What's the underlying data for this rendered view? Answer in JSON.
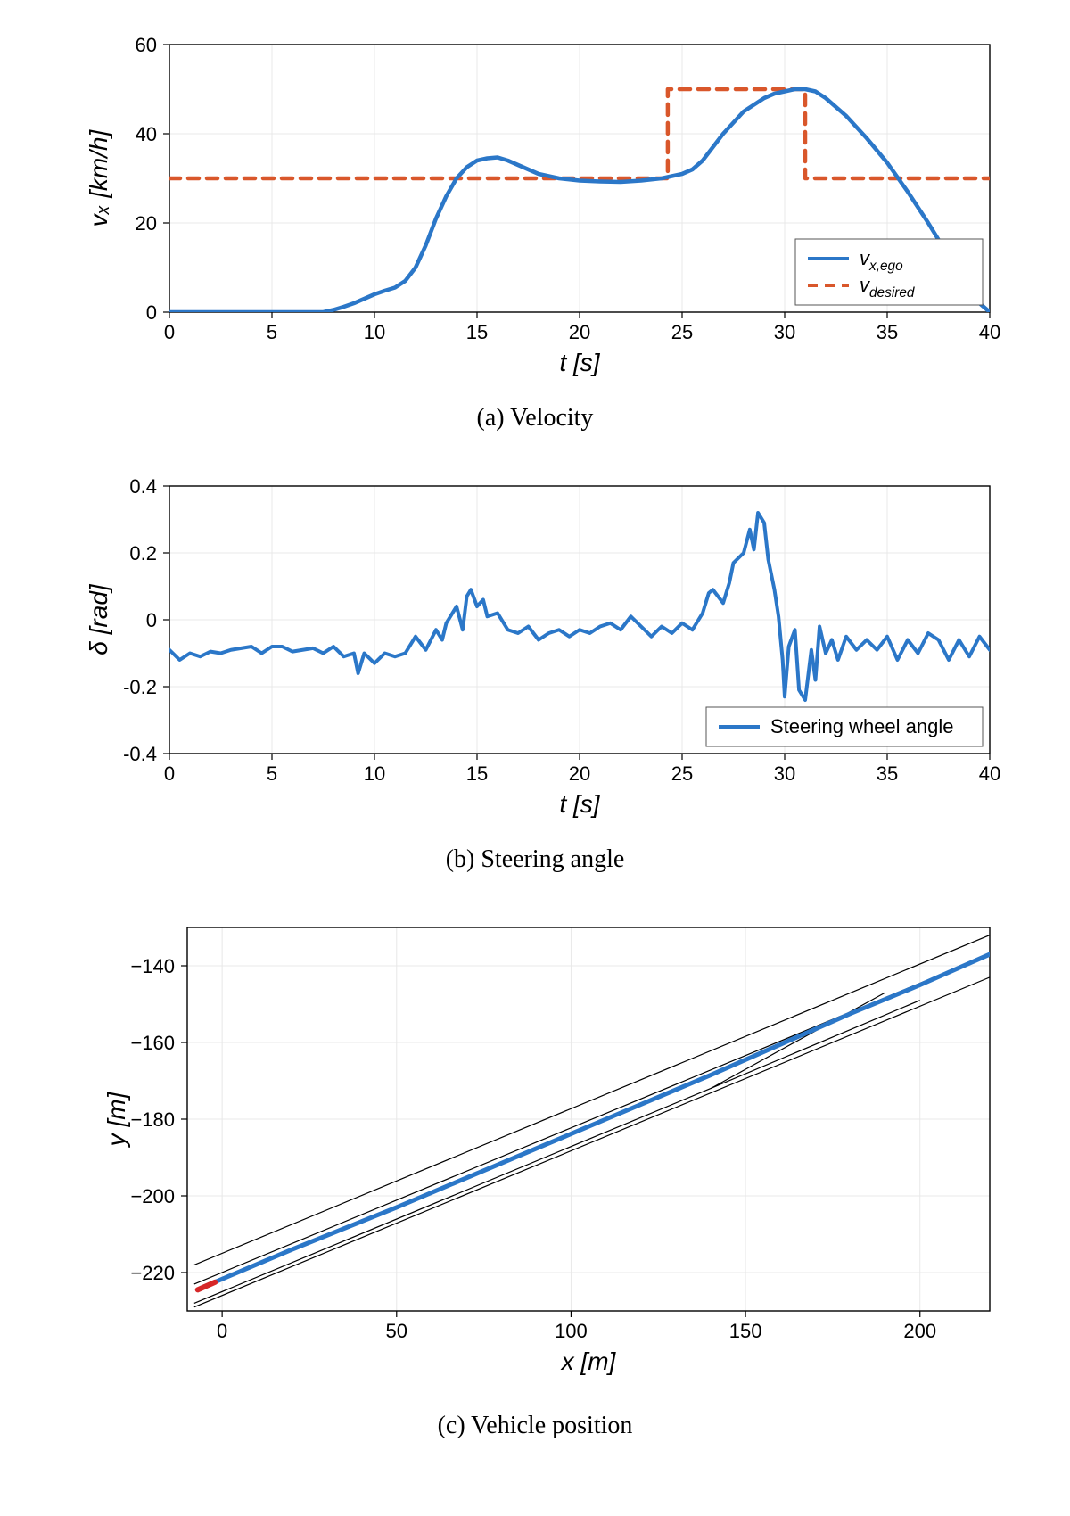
{
  "global": {
    "bg": "#ffffff",
    "axis_color": "#000000",
    "grid_color": "#e8e8e8",
    "line_blue": "#2b77c8",
    "line_orange": "#d9572b",
    "line_black": "#000000",
    "line_red": "#d62728",
    "tick_fontsize": 22,
    "label_fontsize": 28,
    "legend_fontsize": 22,
    "caption_fontsize": 28,
    "line_width_main": 4.5,
    "line_width_dash": 4.5,
    "line_width_thin": 1.2
  },
  "panelA": {
    "type": "line",
    "caption": "(a) Velocity",
    "xlabel": "t [s]",
    "ylabel": "vₓ [km/h]",
    "xlim": [
      0,
      40
    ],
    "ylim": [
      0,
      60
    ],
    "xtick_step": 5,
    "ytick_step": 20,
    "grid": true,
    "legend": {
      "position": "lower-right",
      "entries": [
        {
          "label": "v_{x,ego}",
          "color": "#2b77c8",
          "dash": false
        },
        {
          "label": "v_{desired}",
          "color": "#d9572b",
          "dash": true
        }
      ]
    },
    "series": [
      {
        "name": "v_desired",
        "color": "#d9572b",
        "dash": [
          12,
          9
        ],
        "width": 4.5,
        "t": [
          0,
          24.3,
          24.3,
          31,
          31,
          40
        ],
        "y": [
          30,
          30,
          50,
          50,
          30,
          30
        ]
      },
      {
        "name": "v_x_ego",
        "color": "#2b77c8",
        "dash": null,
        "width": 4.5,
        "t": [
          0,
          2,
          4,
          6,
          7.5,
          8,
          8.5,
          9,
          9.5,
          10,
          10.5,
          11,
          11.5,
          12,
          12.5,
          13,
          13.5,
          14,
          14.5,
          15,
          15.5,
          16,
          16.5,
          17,
          17.5,
          18,
          19,
          20,
          21,
          22,
          23,
          24,
          24.5,
          25,
          25.5,
          26,
          26.5,
          27,
          27.5,
          28,
          28.5,
          29,
          29.5,
          30,
          30.5,
          31,
          31.5,
          32,
          33,
          34,
          35,
          36,
          37,
          38,
          39,
          39.5,
          40
        ],
        "y": [
          0,
          0,
          0,
          0,
          0,
          0.5,
          1.2,
          2,
          3,
          4,
          4.8,
          5.5,
          7,
          10,
          15,
          21,
          26,
          30,
          32.5,
          34,
          34.5,
          34.7,
          34,
          33,
          32,
          31,
          30,
          29.5,
          29.3,
          29.2,
          29.5,
          30,
          30.5,
          31,
          32,
          34,
          37,
          40,
          42.5,
          45,
          46.5,
          48,
          49,
          49.5,
          50,
          50,
          49.5,
          48,
          44,
          39,
          33.5,
          27,
          20,
          12.5,
          5,
          2,
          0
        ]
      }
    ]
  },
  "panelB": {
    "type": "line",
    "caption": "(b) Steering angle",
    "xlabel": "t [s]",
    "ylabel": "δ [rad]",
    "xlim": [
      0,
      40
    ],
    "ylim": [
      -0.4,
      0.4
    ],
    "xtick_step": 5,
    "ytick_step": 0.2,
    "grid": true,
    "legend": {
      "position": "lower-right",
      "entries": [
        {
          "label": "Steering wheel angle",
          "color": "#2b77c8",
          "dash": false
        }
      ]
    },
    "series": [
      {
        "name": "steering",
        "color": "#2b77c8",
        "dash": null,
        "width": 4,
        "t": [
          0,
          0.5,
          1,
          1.5,
          2,
          2.5,
          3,
          3.5,
          4,
          4.5,
          5,
          5.5,
          6,
          6.5,
          7,
          7.5,
          8,
          8.5,
          9,
          9.2,
          9.5,
          10,
          10.5,
          11,
          11.5,
          12,
          12.5,
          13,
          13.3,
          13.5,
          14,
          14.3,
          14.5,
          14.7,
          15,
          15.3,
          15.5,
          16,
          16.5,
          17,
          17.5,
          18,
          18.5,
          19,
          19.5,
          20,
          20.5,
          21,
          21.5,
          22,
          22.5,
          23,
          23.5,
          24,
          24.5,
          25,
          25.5,
          26,
          26.3,
          26.5,
          27,
          27.3,
          27.5,
          28,
          28.3,
          28.5,
          28.7,
          29,
          29.2,
          29.5,
          29.7,
          29.9,
          30,
          30.2,
          30.5,
          30.7,
          31,
          31.3,
          31.5,
          31.7,
          32,
          32.3,
          32.6,
          33,
          33.5,
          34,
          34.5,
          35,
          35.5,
          36,
          36.5,
          37,
          37.5,
          38,
          38.5,
          39,
          39.5,
          40
        ],
        "y": [
          -0.09,
          -0.12,
          -0.1,
          -0.11,
          -0.095,
          -0.1,
          -0.09,
          -0.085,
          -0.08,
          -0.1,
          -0.08,
          -0.08,
          -0.095,
          -0.09,
          -0.085,
          -0.1,
          -0.08,
          -0.11,
          -0.1,
          -0.16,
          -0.1,
          -0.13,
          -0.1,
          -0.11,
          -0.1,
          -0.05,
          -0.09,
          -0.03,
          -0.06,
          -0.01,
          0.04,
          -0.03,
          0.07,
          0.09,
          0.04,
          0.06,
          0.01,
          0.02,
          -0.03,
          -0.04,
          -0.02,
          -0.06,
          -0.04,
          -0.03,
          -0.05,
          -0.03,
          -0.04,
          -0.02,
          -0.01,
          -0.03,
          0.01,
          -0.02,
          -0.05,
          -0.02,
          -0.04,
          -0.01,
          -0.03,
          0.02,
          0.08,
          0.09,
          0.05,
          0.11,
          0.17,
          0.2,
          0.27,
          0.21,
          0.32,
          0.29,
          0.18,
          0.09,
          0.01,
          -0.12,
          -0.23,
          -0.08,
          -0.03,
          -0.21,
          -0.24,
          -0.09,
          -0.18,
          -0.02,
          -0.1,
          -0.06,
          -0.12,
          -0.05,
          -0.09,
          -0.06,
          -0.09,
          -0.05,
          -0.12,
          -0.06,
          -0.1,
          -0.04,
          -0.06,
          -0.12,
          -0.06,
          -0.11,
          -0.05,
          -0.09
        ]
      }
    ]
  },
  "panelC": {
    "type": "line",
    "caption": "(c) Vehicle position",
    "xlabel": "x [m]",
    "ylabel": "y [m]",
    "xlim": [
      -10,
      220
    ],
    "ylim": [
      -230,
      -130
    ],
    "xticks": [
      0,
      50,
      100,
      150,
      200
    ],
    "yticks": [
      -140,
      -160,
      -180,
      -200,
      -220
    ],
    "grid": true,
    "lanes": [
      {
        "name": "outer_top",
        "width": 1.2,
        "color": "#000000",
        "x": [
          -8,
          220
        ],
        "y": [
          -218,
          -132
        ]
      },
      {
        "name": "mid",
        "width": 1.2,
        "color": "#000000",
        "x": [
          -8,
          220
        ],
        "y": [
          -223,
          -137
        ]
      },
      {
        "name": "outer_bottom_a",
        "width": 1.2,
        "color": "#000000",
        "x": [
          -8,
          140
        ],
        "y": [
          -228,
          -172
        ]
      },
      {
        "name": "merge",
        "width": 1.2,
        "color": "#000000",
        "x": [
          140,
          190
        ],
        "y": [
          -172,
          -147
        ]
      },
      {
        "name": "outer_bottom_b",
        "width": 1.2,
        "color": "#000000",
        "x": [
          140,
          200
        ],
        "y": [
          -172,
          -149
        ]
      },
      {
        "name": "outer_bottom_c",
        "width": 1.2,
        "color": "#000000",
        "x": [
          -8,
          220
        ],
        "y": [
          -229,
          -143
        ]
      }
    ],
    "trajectory": {
      "color": "#2b77c8",
      "width": 5,
      "x": [
        -6,
        20,
        50,
        80,
        110,
        140,
        160,
        180,
        200,
        220
      ],
      "y": [
        -224,
        -214,
        -203,
        -191.5,
        -180,
        -168.5,
        -160.5,
        -152.5,
        -145,
        -137
      ]
    },
    "marker": {
      "color": "#d62728",
      "width": 6,
      "x": [
        -7,
        -2
      ],
      "y": [
        -224.5,
        -222.5
      ]
    }
  }
}
